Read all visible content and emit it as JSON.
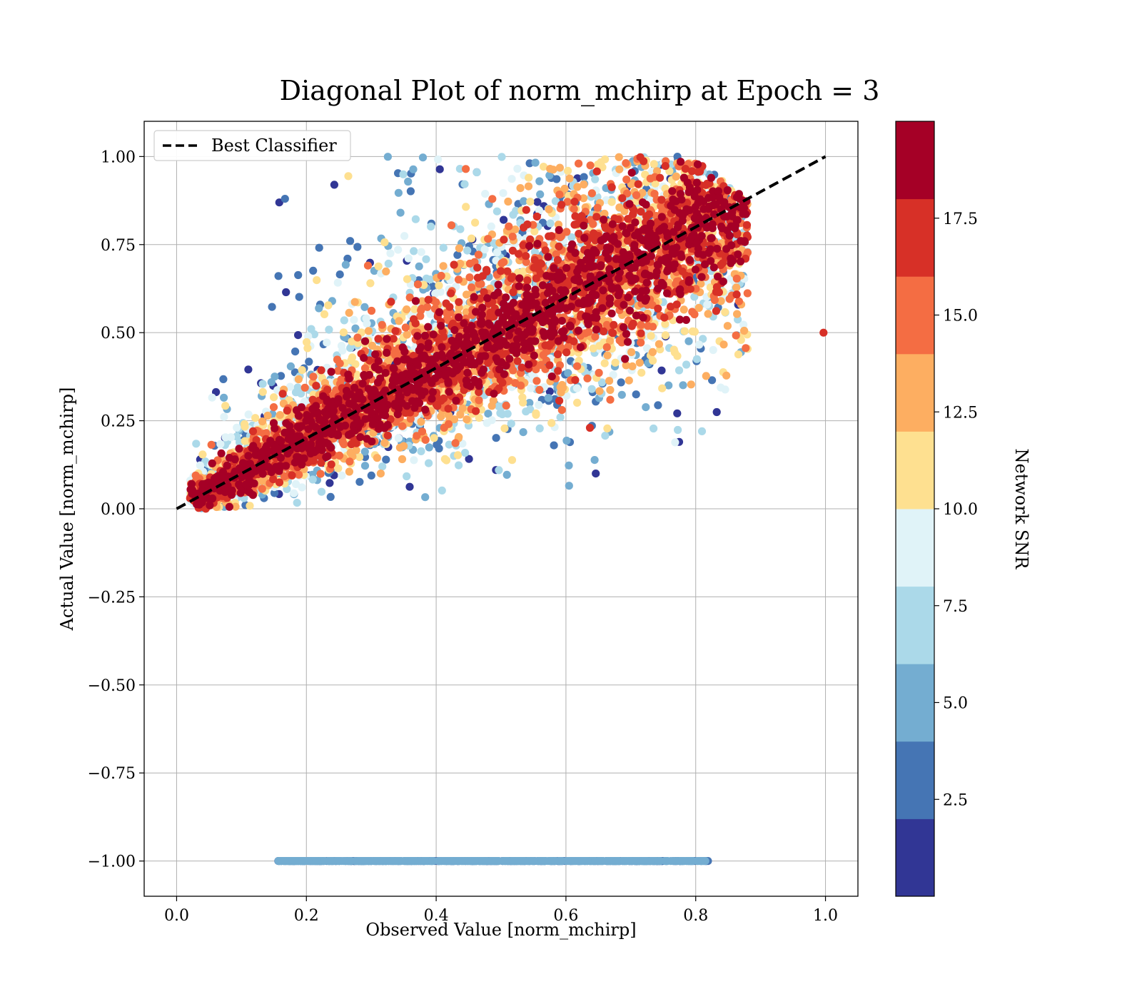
{
  "chart_data": {
    "type": "scatter",
    "title": "Diagonal Plot of norm_mchirp at Epoch = 3",
    "xlabel": "Observed Value [norm_mchirp]",
    "ylabel": "Actual Value [norm_mchirp]",
    "xlim": [
      -0.05,
      1.05
    ],
    "ylim": [
      -1.1,
      1.1
    ],
    "x_ticks": [
      0.0,
      0.2,
      0.4,
      0.6,
      0.8,
      1.0
    ],
    "x_tick_labels": [
      "0.0",
      "0.2",
      "0.4",
      "0.6",
      "0.8",
      "1.0"
    ],
    "y_ticks": [
      1.0,
      0.75,
      0.5,
      0.25,
      0.0,
      -0.25,
      -0.5,
      -0.75,
      -1.0
    ],
    "y_tick_labels": [
      "1.00",
      "0.75",
      "0.50",
      "0.25",
      "0.00",
      "−0.25",
      "−0.50",
      "−0.75",
      "−1.00"
    ],
    "grid": true,
    "legend": {
      "position": "top-left",
      "entries": [
        {
          "label": "Best Classifier",
          "style": "dashed",
          "color": "#000000"
        }
      ]
    },
    "reference_line": {
      "name": "Best Classifier",
      "x": [
        0.0,
        1.0
      ],
      "y": [
        0.0,
        1.0
      ]
    },
    "scatter_regions": [
      {
        "name": "main-cloud",
        "x_range": [
          0.02,
          0.88
        ],
        "y_relation": "y ≈ x, spread grows with x",
        "y_range": [
          0.0,
          1.0
        ],
        "snr_high_near_diagonal": true
      },
      {
        "name": "failed-estimates",
        "x_range": [
          0.155,
          0.82
        ],
        "y": -1.0,
        "snr_range": [
          0.5,
          5.5
        ]
      }
    ],
    "sample_points": [
      {
        "x": 0.167,
        "y": 0.88,
        "snr": 3.0
      },
      {
        "x": 0.147,
        "y": 0.573,
        "snr": 3.0
      },
      {
        "x": 0.243,
        "y": 0.92,
        "snr": 1.0
      },
      {
        "x": 0.646,
        "y": 0.1,
        "snr": 1.0
      },
      {
        "x": 0.637,
        "y": 0.23,
        "snr": 17.0
      },
      {
        "x": 0.735,
        "y": 0.228,
        "snr": 7.0
      },
      {
        "x": 0.997,
        "y": 0.5,
        "snr": 17.0
      }
    ],
    "colorbar": {
      "label": "Network SNR",
      "min": 0.0,
      "max": 20.0,
      "bands": 10,
      "ticks": [
        2.5,
        5.0,
        7.5,
        10.0,
        12.5,
        15.0,
        17.5
      ],
      "tick_labels": [
        "2.5",
        "5.0",
        "7.5",
        "10.0",
        "12.5",
        "15.0",
        "17.5"
      ],
      "colors": [
        "#313695",
        "#4575b4",
        "#74add1",
        "#abd9e9",
        "#e0f3f8",
        "#fee090",
        "#fdae61",
        "#f46d43",
        "#d73027",
        "#a50026"
      ],
      "colormap": "RdYlBu_r"
    }
  }
}
